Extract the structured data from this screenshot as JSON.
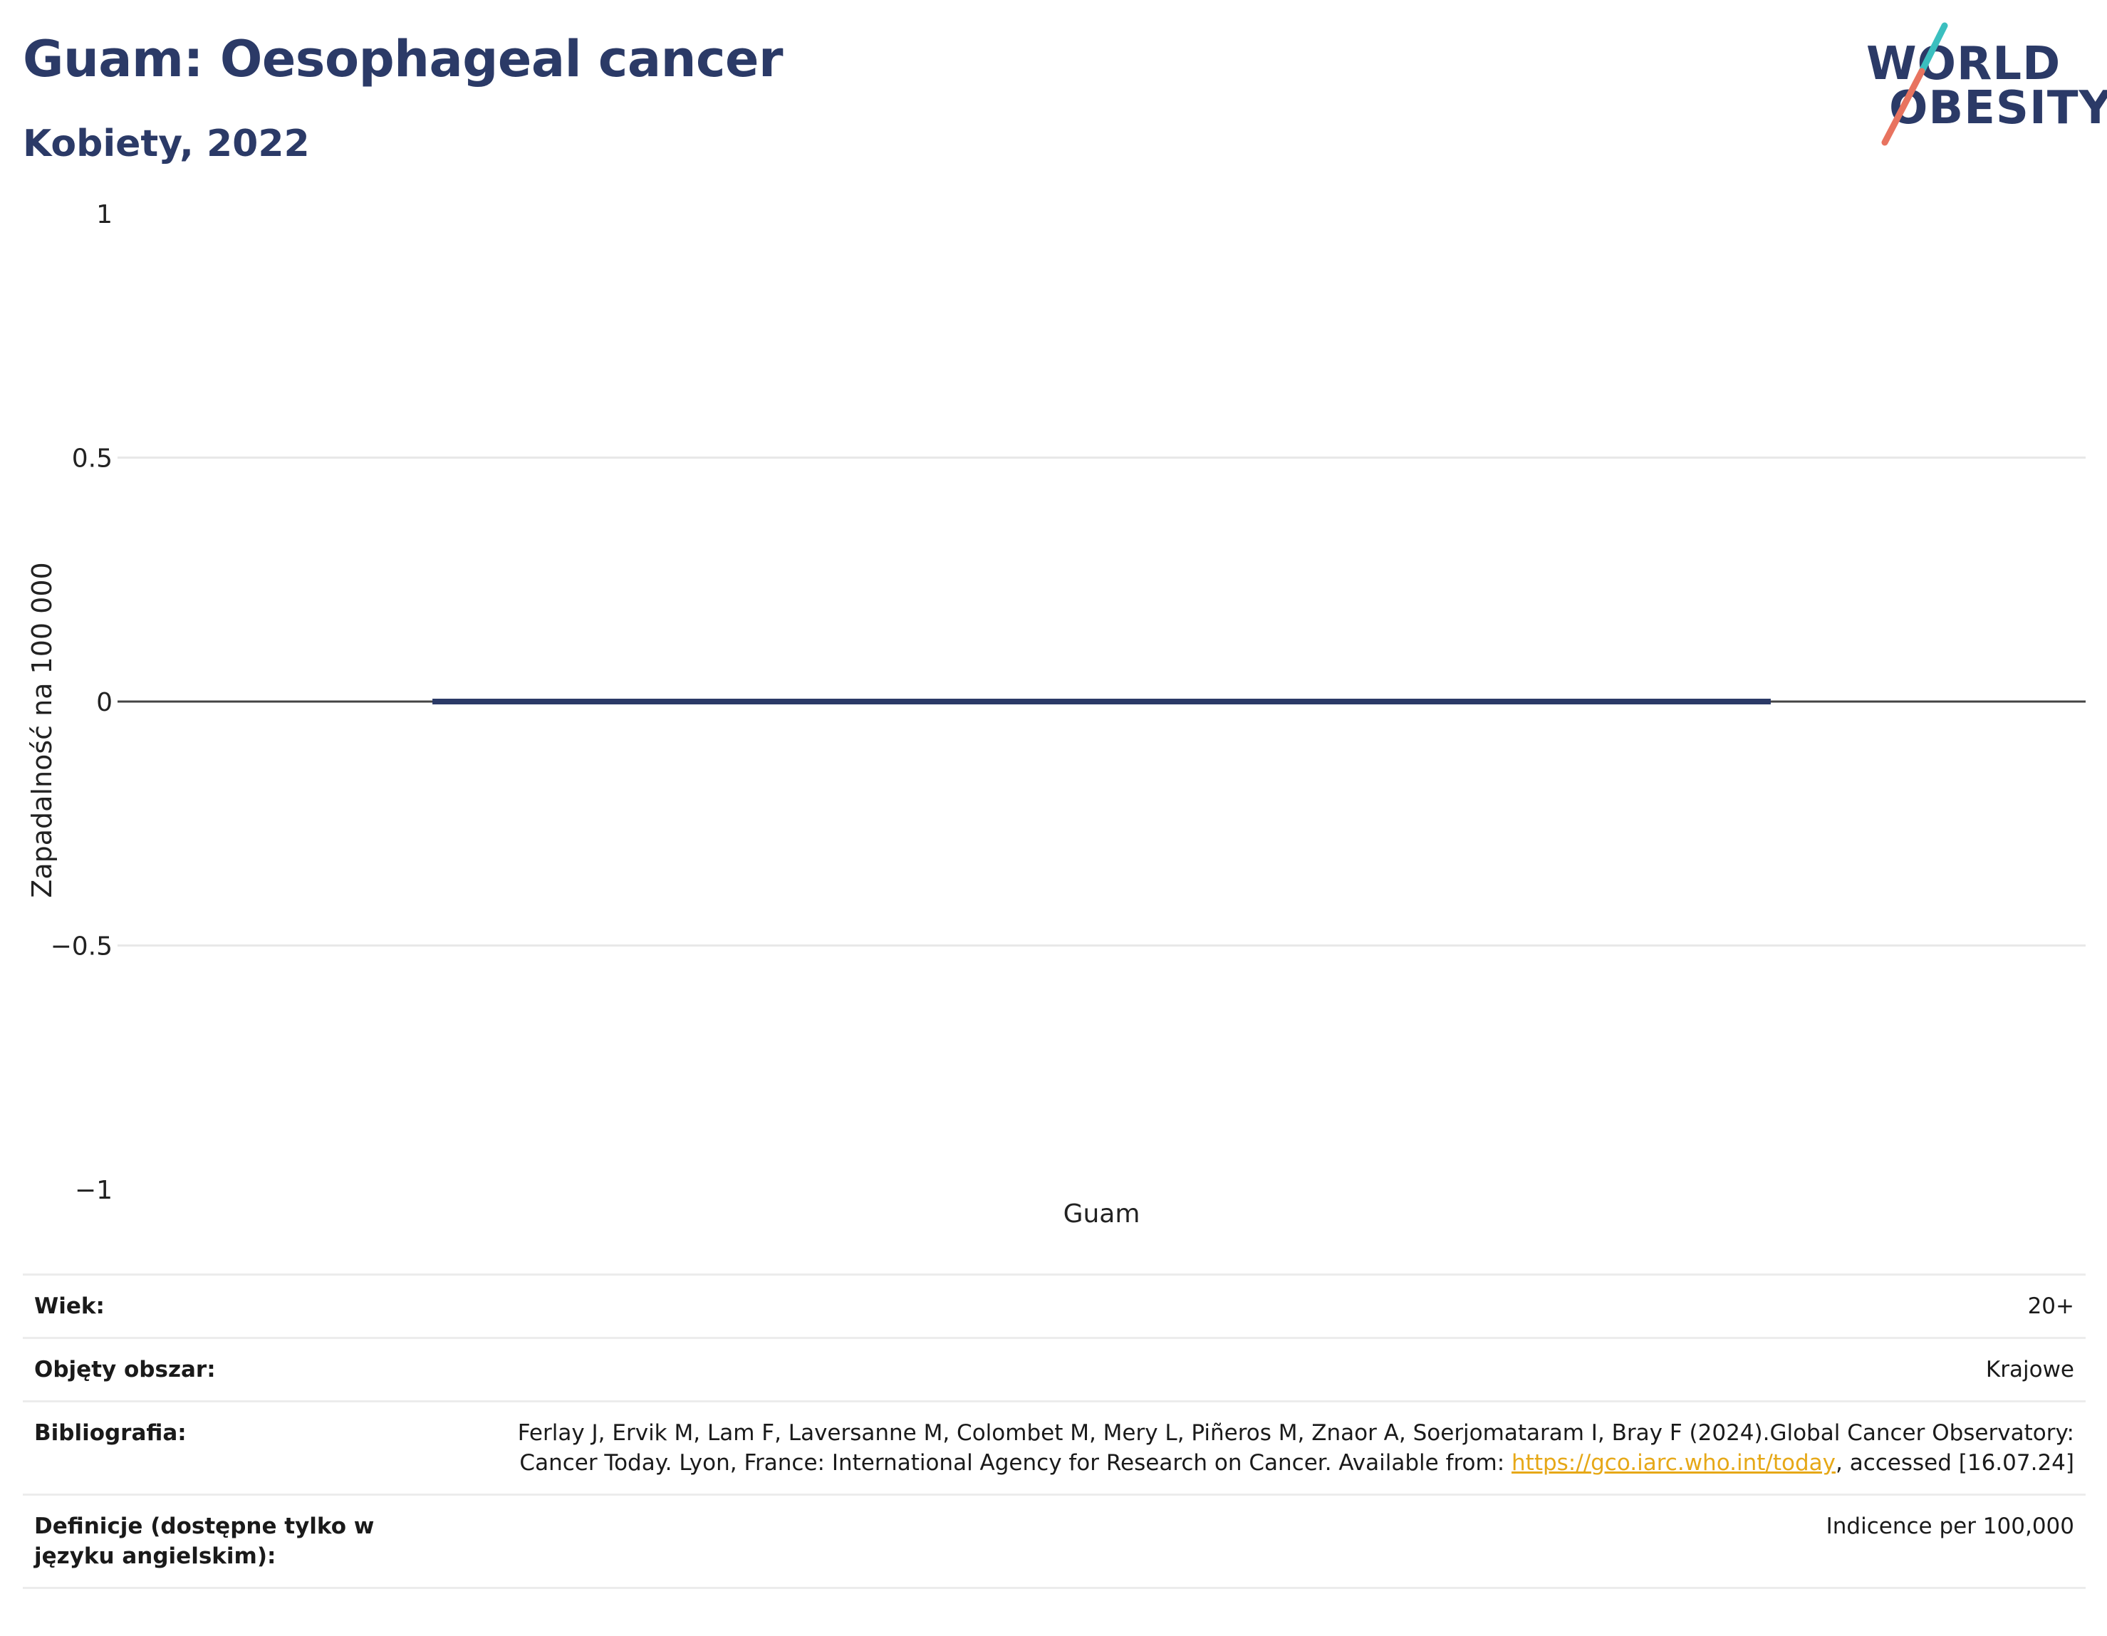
{
  "header": {
    "title": "Guam: Oesophageal cancer",
    "subtitle": "Kobiety, 2022"
  },
  "logo": {
    "line1": "WORLD",
    "line2": "OBESITY",
    "text_color": "#2b3a67",
    "slash_top_color": "#3bbfbf",
    "slash_bottom_color": "#e8735f"
  },
  "chart_data": {
    "type": "bar",
    "categories": [
      "Guam"
    ],
    "series": [
      {
        "values": [
          0
        ],
        "color": "#2b3a67"
      }
    ],
    "title": "",
    "xlabel": "",
    "ylabel": "Zapadalność na 100 000",
    "ylim": [
      -1,
      1
    ],
    "yticks": [
      1,
      0.5,
      0,
      -0.5,
      -1
    ],
    "ytick_labels": [
      "1",
      "0.5",
      "0",
      "−0.5",
      "−1"
    ],
    "grid": true,
    "legend": "none"
  },
  "info": {
    "age_label": "Wiek:",
    "age_value": "20+",
    "coverage_label": "Objęty obszar:",
    "coverage_value": "Krajowe",
    "bibliography_label": "Bibliografia:",
    "bibliography_pre": "Ferlay J, Ervik M, Lam F, Laversanne M, Colombet M, Mery L, Piñeros M, Znaor A, Soerjomataram I, Bray F (2024).Global Cancer Observatory: Cancer Today. Lyon, France: International Agency for Research on Cancer. Available from: ",
    "bibliography_link": "https://gco.iarc.who.int/today",
    "bibliography_post": ", accessed [16.07.24]",
    "definitions_label": "Definicje (dostępne tylko w języku angielskim):",
    "definitions_value": "Indicence per 100,000"
  }
}
